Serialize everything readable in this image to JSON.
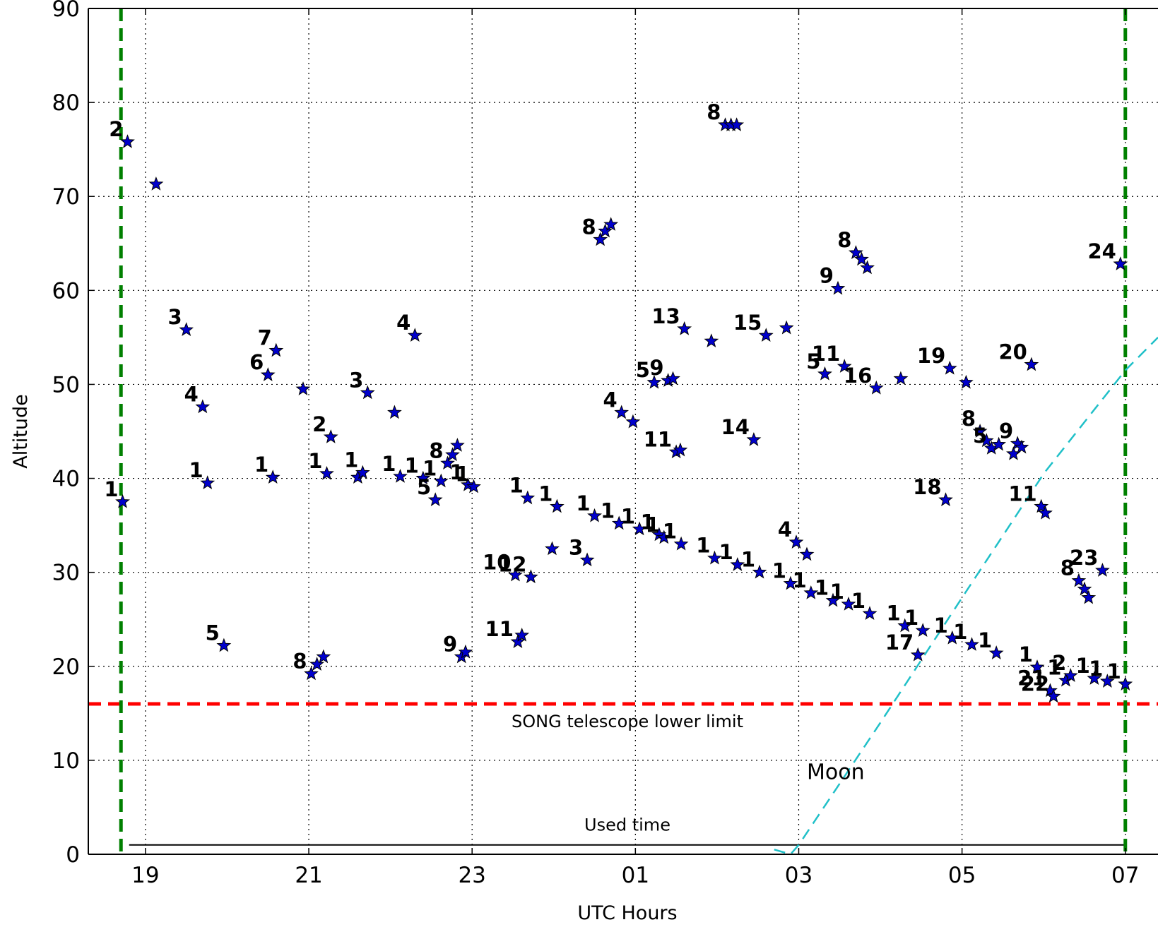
{
  "chart_data": {
    "type": "scatter",
    "xlabel": "UTC Hours",
    "ylabel": "Altitude",
    "x_ticks": [
      {
        "value": 19,
        "label": "19"
      },
      {
        "value": 21,
        "label": "21"
      },
      {
        "value": 23,
        "label": "23"
      },
      {
        "value": 25,
        "label": "01"
      },
      {
        "value": 27,
        "label": "03"
      },
      {
        "value": 29,
        "label": "05"
      },
      {
        "value": 31,
        "label": "07"
      }
    ],
    "y_ticks": [
      0,
      10,
      20,
      30,
      40,
      50,
      60,
      70,
      80,
      90
    ],
    "xlim": [
      18.3,
      31.4
    ],
    "ylim": [
      0,
      90
    ],
    "grid": true,
    "colors": {
      "points": "#0000cc",
      "night_limits": "#008000",
      "telescope_limit": "#ff0000",
      "moon": "#20c0c8",
      "used_time": "#000000"
    },
    "night_limits_x": [
      18.7,
      31.0
    ],
    "telescope_limit": {
      "y": 16,
      "label": "SONG telescope lower limit"
    },
    "moon": {
      "label": "Moon",
      "points": [
        [
          26.7,
          0.5
        ],
        [
          26.9,
          0
        ],
        [
          27.0,
          1.0
        ],
        [
          28.0,
          14.0
        ],
        [
          29.0,
          27.3
        ],
        [
          30.0,
          40.5
        ],
        [
          31.0,
          51.5
        ],
        [
          31.4,
          55.0
        ]
      ]
    },
    "used_time": {
      "label": "Used time",
      "x": [
        18.8,
        31.0
      ],
      "y": 1
    },
    "points": [
      {
        "x": 18.72,
        "y": 37.5,
        "label": "1"
      },
      {
        "x": 18.78,
        "y": 75.8,
        "label": "2"
      },
      {
        "x": 19.13,
        "y": 71.3,
        "label": ""
      },
      {
        "x": 19.5,
        "y": 55.8,
        "label": "3"
      },
      {
        "x": 19.7,
        "y": 47.6,
        "label": "4"
      },
      {
        "x": 19.76,
        "y": 39.5,
        "label": "1"
      },
      {
        "x": 19.96,
        "y": 22.2,
        "label": "5"
      },
      {
        "x": 20.5,
        "y": 51.0,
        "label": "6"
      },
      {
        "x": 20.6,
        "y": 53.6,
        "label": "7"
      },
      {
        "x": 20.56,
        "y": 40.1,
        "label": "1"
      },
      {
        "x": 20.93,
        "y": 49.5,
        "label": ""
      },
      {
        "x": 21.03,
        "y": 19.2,
        "label": "8"
      },
      {
        "x": 21.1,
        "y": 20.2,
        "label": ""
      },
      {
        "x": 21.18,
        "y": 21.0,
        "label": ""
      },
      {
        "x": 21.22,
        "y": 40.5,
        "label": "1"
      },
      {
        "x": 21.27,
        "y": 44.4,
        "label": "2"
      },
      {
        "x": 21.6,
        "y": 40.1,
        "label": ""
      },
      {
        "x": 21.66,
        "y": 40.6,
        "label": "1"
      },
      {
        "x": 21.72,
        "y": 49.1,
        "label": "3"
      },
      {
        "x": 22.05,
        "y": 47.0,
        "label": ""
      },
      {
        "x": 22.12,
        "y": 40.2,
        "label": "1"
      },
      {
        "x": 22.3,
        "y": 55.2,
        "label": "4"
      },
      {
        "x": 22.4,
        "y": 40.0,
        "label": "1"
      },
      {
        "x": 22.55,
        "y": 37.7,
        "label": "5"
      },
      {
        "x": 22.62,
        "y": 39.7,
        "label": "1"
      },
      {
        "x": 22.7,
        "y": 41.6,
        "label": "8"
      },
      {
        "x": 22.76,
        "y": 42.5,
        "label": ""
      },
      {
        "x": 22.82,
        "y": 43.5,
        "label": ""
      },
      {
        "x": 22.87,
        "y": 21.0,
        "label": "9"
      },
      {
        "x": 22.92,
        "y": 21.5,
        "label": ""
      },
      {
        "x": 22.95,
        "y": 39.3,
        "label": "1"
      },
      {
        "x": 23.02,
        "y": 39.1,
        "label": "1"
      },
      {
        "x": 23.53,
        "y": 29.7,
        "label": "10"
      },
      {
        "x": 23.56,
        "y": 22.6,
        "label": "11"
      },
      {
        "x": 23.61,
        "y": 23.3,
        "label": ""
      },
      {
        "x": 23.68,
        "y": 37.9,
        "label": "1"
      },
      {
        "x": 23.72,
        "y": 29.5,
        "label": "12"
      },
      {
        "x": 23.98,
        "y": 32.5,
        "label": ""
      },
      {
        "x": 24.04,
        "y": 37.0,
        "label": "1"
      },
      {
        "x": 24.41,
        "y": 31.3,
        "label": "3"
      },
      {
        "x": 24.5,
        "y": 36.0,
        "label": "1"
      },
      {
        "x": 24.57,
        "y": 65.4,
        "label": "8"
      },
      {
        "x": 24.63,
        "y": 66.3,
        "label": ""
      },
      {
        "x": 24.7,
        "y": 67.0,
        "label": ""
      },
      {
        "x": 24.8,
        "y": 35.2,
        "label": "1"
      },
      {
        "x": 24.83,
        "y": 47.0,
        "label": "4"
      },
      {
        "x": 24.97,
        "y": 46.0,
        "label": ""
      },
      {
        "x": 25.05,
        "y": 34.6,
        "label": "1"
      },
      {
        "x": 25.23,
        "y": 50.2,
        "label": "5"
      },
      {
        "x": 25.29,
        "y": 34.0,
        "label": "1"
      },
      {
        "x": 25.35,
        "y": 33.7,
        "label": "1"
      },
      {
        "x": 25.4,
        "y": 50.4,
        "label": "9"
      },
      {
        "x": 25.46,
        "y": 50.6,
        "label": ""
      },
      {
        "x": 25.5,
        "y": 42.8,
        "label": "11"
      },
      {
        "x": 25.55,
        "y": 43.0,
        "label": ""
      },
      {
        "x": 25.56,
        "y": 33.0,
        "label": "1"
      },
      {
        "x": 25.6,
        "y": 55.9,
        "label": "13"
      },
      {
        "x": 25.93,
        "y": 54.6,
        "label": ""
      },
      {
        "x": 25.97,
        "y": 31.5,
        "label": "1"
      },
      {
        "x": 26.1,
        "y": 77.6,
        "label": "8"
      },
      {
        "x": 26.17,
        "y": 77.6,
        "label": ""
      },
      {
        "x": 26.24,
        "y": 77.6,
        "label": ""
      },
      {
        "x": 26.25,
        "y": 30.8,
        "label": "1"
      },
      {
        "x": 26.45,
        "y": 44.1,
        "label": "14"
      },
      {
        "x": 26.52,
        "y": 30.0,
        "label": "1"
      },
      {
        "x": 26.6,
        "y": 55.2,
        "label": "15"
      },
      {
        "x": 26.85,
        "y": 56.0,
        "label": ""
      },
      {
        "x": 26.9,
        "y": 28.8,
        "label": "1"
      },
      {
        "x": 26.97,
        "y": 33.2,
        "label": "4"
      },
      {
        "x": 27.1,
        "y": 31.9,
        "label": ""
      },
      {
        "x": 27.15,
        "y": 27.8,
        "label": "1"
      },
      {
        "x": 27.32,
        "y": 51.1,
        "label": "5"
      },
      {
        "x": 27.42,
        "y": 27.0,
        "label": "1"
      },
      {
        "x": 27.48,
        "y": 60.2,
        "label": "9"
      },
      {
        "x": 27.56,
        "y": 51.9,
        "label": "11"
      },
      {
        "x": 27.61,
        "y": 26.6,
        "label": "1"
      },
      {
        "x": 27.7,
        "y": 64.0,
        "label": "8"
      },
      {
        "x": 27.77,
        "y": 63.3,
        "label": ""
      },
      {
        "x": 27.84,
        "y": 62.4,
        "label": ""
      },
      {
        "x": 27.87,
        "y": 25.6,
        "label": "1"
      },
      {
        "x": 27.95,
        "y": 49.6,
        "label": "16"
      },
      {
        "x": 28.25,
        "y": 50.6,
        "label": ""
      },
      {
        "x": 28.3,
        "y": 24.3,
        "label": "1"
      },
      {
        "x": 28.46,
        "y": 21.2,
        "label": "17"
      },
      {
        "x": 28.52,
        "y": 23.8,
        "label": "1"
      },
      {
        "x": 28.8,
        "y": 37.7,
        "label": "18"
      },
      {
        "x": 28.85,
        "y": 51.7,
        "label": "19"
      },
      {
        "x": 28.88,
        "y": 23.0,
        "label": "1"
      },
      {
        "x": 29.05,
        "y": 50.2,
        "label": ""
      },
      {
        "x": 29.12,
        "y": 22.3,
        "label": "1"
      },
      {
        "x": 29.22,
        "y": 45.0,
        "label": "8"
      },
      {
        "x": 29.3,
        "y": 44.0,
        "label": ""
      },
      {
        "x": 29.36,
        "y": 43.2,
        "label": "5"
      },
      {
        "x": 29.42,
        "y": 21.4,
        "label": "1"
      },
      {
        "x": 29.45,
        "y": 43.6,
        "label": ""
      },
      {
        "x": 29.63,
        "y": 42.6,
        "label": ""
      },
      {
        "x": 29.68,
        "y": 43.7,
        "label": "9"
      },
      {
        "x": 29.73,
        "y": 43.3,
        "label": ""
      },
      {
        "x": 29.85,
        "y": 52.1,
        "label": "20"
      },
      {
        "x": 29.92,
        "y": 19.9,
        "label": "1"
      },
      {
        "x": 29.97,
        "y": 37.0,
        "label": "11"
      },
      {
        "x": 30.02,
        "y": 36.3,
        "label": ""
      },
      {
        "x": 30.08,
        "y": 17.4,
        "label": "21"
      },
      {
        "x": 30.12,
        "y": 16.8,
        "label": "22"
      },
      {
        "x": 30.27,
        "y": 18.5,
        "label": "1"
      },
      {
        "x": 30.33,
        "y": 19.0,
        "label": "2"
      },
      {
        "x": 30.43,
        "y": 29.1,
        "label": "8"
      },
      {
        "x": 30.5,
        "y": 28.2,
        "label": ""
      },
      {
        "x": 30.55,
        "y": 27.3,
        "label": ""
      },
      {
        "x": 30.62,
        "y": 18.7,
        "label": "1"
      },
      {
        "x": 30.72,
        "y": 30.2,
        "label": "23"
      },
      {
        "x": 30.78,
        "y": 18.4,
        "label": "1"
      },
      {
        "x": 30.94,
        "y": 62.8,
        "label": "24"
      },
      {
        "x": 31.0,
        "y": 18.1,
        "label": "1"
      }
    ]
  }
}
